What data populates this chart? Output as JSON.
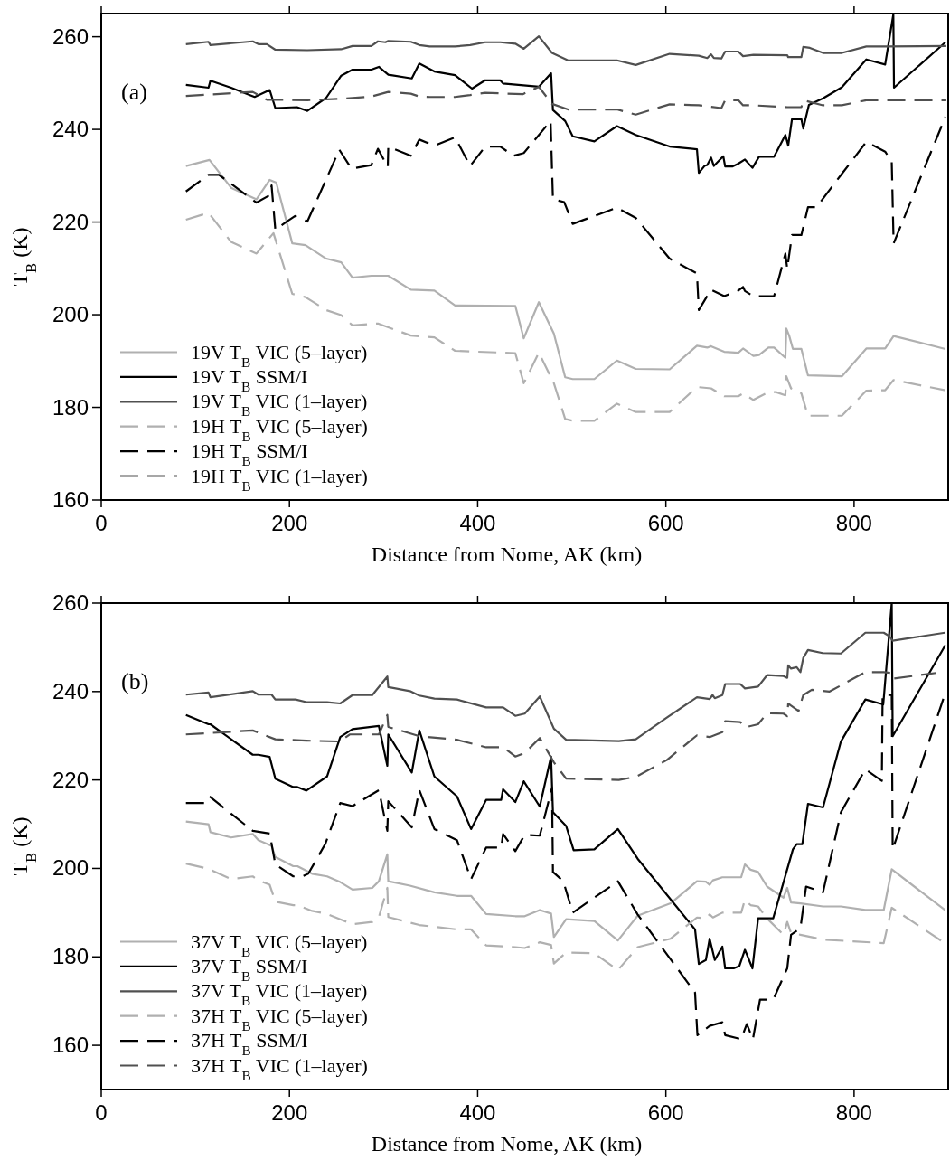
{
  "chart_data": [
    {
      "type": "line",
      "xlabel": "Distance from Nome, AK (km)",
      "ylabel": "T$_{B}$ (K)",
      "xlim": [
        0,
        900
      ],
      "ylim": [
        160,
        265
      ],
      "xticks": [
        0,
        200,
        400,
        600,
        800
      ],
      "yticks": [
        160,
        180,
        200,
        220,
        240,
        260
      ],
      "legend": "bottom left",
      "annotations": [
        "(a)"
      ],
      "series": [
        {
          "name": "19V T$_{B}$ VIC (5–layer)",
          "color": "#b0b0b0",
          "line_style": "solid",
          "x": [
            90,
            115,
            138,
            165,
            179,
            186,
            203,
            217,
            239,
            255,
            267,
            287,
            305,
            329,
            354,
            376,
            440,
            449,
            465,
            481,
            493,
            501,
            524,
            548,
            568,
            604,
            633,
            644,
            648,
            662,
            677,
            682,
            693,
            699,
            709,
            715,
            727,
            728,
            731,
            735,
            744,
            751,
            787,
            813,
            833,
            842,
            897
          ],
          "values": [
            232.1,
            233.4,
            227.4,
            224.9,
            229.1,
            228.5,
            215.4,
            215,
            212.1,
            211.3,
            208,
            208.4,
            208.4,
            205.4,
            205.2,
            202,
            201.9,
            194.9,
            202.7,
            195.9,
            186.5,
            186.1,
            186.1,
            190.1,
            188.3,
            188.2,
            193.3,
            192.9,
            193.2,
            192,
            191.8,
            192.7,
            191.1,
            191.3,
            192.9,
            192.9,
            190.7,
            197,
            195.5,
            192.6,
            192.6,
            186.9,
            186.7,
            192.7,
            192.7,
            195.4,
            192.6
          ]
        },
        {
          "name": "19V T$_{B}$ SSM/I",
          "color": "#000000",
          "line_style": "solid",
          "x": [
            90,
            114,
            116,
            138,
            163,
            179,
            185,
            208,
            219,
            239,
            255,
            267,
            287,
            295,
            305,
            330,
            338,
            354,
            376,
            394,
            408,
            424,
            427,
            465,
            478,
            480,
            493,
            501,
            524,
            548,
            568,
            604,
            633,
            635,
            641,
            644,
            648,
            651,
            661,
            663,
            671,
            677,
            684,
            692,
            699,
            715,
            727,
            730,
            734,
            744,
            746,
            752,
            767,
            787,
            813,
            833,
            841.7,
            842.4,
            897
          ],
          "values": [
            249.6,
            249,
            250.5,
            249,
            247,
            248.5,
            244.6,
            244.8,
            244,
            246.8,
            251.6,
            252.9,
            252.9,
            253.5,
            251.8,
            251,
            254.2,
            252.5,
            251.7,
            248.8,
            250.6,
            250.6,
            249.9,
            249.2,
            252.1,
            244.2,
            241.8,
            238.5,
            237.4,
            240.7,
            238.8,
            236.3,
            235.7,
            230.6,
            232.1,
            232.3,
            233.9,
            232.1,
            234.2,
            232,
            232,
            232.6,
            233.5,
            231.7,
            234.1,
            234.1,
            238.8,
            236.5,
            242.2,
            242.2,
            240.2,
            245.3,
            246.7,
            249.1,
            255.1,
            254,
            264.8,
            249,
            258.8
          ]
        },
        {
          "name": "19V T$_{B}$ VIC (1–layer)",
          "color": "#505050",
          "line_style": "solid",
          "x": [
            90,
            114,
            116,
            161,
            167,
            176,
            185,
            219,
            255,
            267,
            287,
            294,
            302,
            305,
            329,
            338,
            349,
            376,
            392,
            408,
            424,
            440,
            449,
            465,
            479,
            496,
            548,
            568,
            604,
            635,
            644,
            648,
            651,
            659,
            663,
            677,
            682,
            693,
            729,
            730,
            744,
            746,
            753,
            767,
            787,
            813,
            834,
            898
          ],
          "values": [
            258.4,
            258.9,
            258.2,
            259,
            258.4,
            258.4,
            257.2,
            257.1,
            257.3,
            258,
            258,
            259,
            258.8,
            259.1,
            258.9,
            258.2,
            257.9,
            257.9,
            258.2,
            258.8,
            258.8,
            258.5,
            257.4,
            260.1,
            256.5,
            254.9,
            254.9,
            253.9,
            256.3,
            255.9,
            255.4,
            256.2,
            255.4,
            255.3,
            256.8,
            256.8,
            255.8,
            256.1,
            256,
            255.6,
            255.6,
            257.8,
            257.6,
            256.5,
            256.5,
            257.9,
            257.9,
            258
          ]
        },
        {
          "name": "19H T$_{B}$ VIC (5–layer)",
          "color": "#b0b0b0",
          "line_style": "dashed",
          "x": [
            90,
            114,
            138,
            165,
            183,
            203,
            217,
            239,
            255,
            267,
            294,
            329,
            354,
            376,
            440,
            449,
            465,
            481,
            493,
            501,
            524,
            548,
            568,
            604,
            633,
            648,
            662,
            677,
            682,
            693,
            709,
            717,
            727,
            728,
            733,
            738,
            744,
            751,
            787,
            813,
            833,
            842,
            897
          ],
          "values": [
            220.5,
            222,
            215.7,
            213.2,
            217.6,
            204.5,
            203.8,
            201,
            199.9,
            197.7,
            198.1,
            195.5,
            195.1,
            192.2,
            191.7,
            185.2,
            191.8,
            185.2,
            177.5,
            177.1,
            177.1,
            180.8,
            179,
            179,
            184.4,
            184.1,
            182.4,
            182.4,
            183,
            181.6,
            183.3,
            183.3,
            182.6,
            186.7,
            184.1,
            183.7,
            183,
            178.2,
            178.2,
            183.6,
            183.7,
            185.9,
            183.7
          ]
        },
        {
          "name": "19H T$_{B}$ SSM/I",
          "color": "#000000",
          "line_style": "dashed",
          "x": [
            90,
            114,
            125,
            165,
            179,
            181,
            185,
            197,
            206,
            219,
            253,
            266,
            287,
            294,
            304.5,
            305,
            329,
            338,
            354,
            376,
            392,
            408,
            424,
            438,
            449,
            477.5,
            480,
            492,
            501,
            548,
            568,
            604,
            633,
            635,
            648,
            662,
            677,
            682,
            684,
            693,
            715,
            727,
            729,
            734,
            744,
            751,
            760,
            787,
            813,
            833,
            840,
            842,
            897
          ],
          "values": [
            226.6,
            230.2,
            230.2,
            224.2,
            225.8,
            227.9,
            218.3,
            220.1,
            221.3,
            220.1,
            235.6,
            231.5,
            232.3,
            235.8,
            231.9,
            236.3,
            234.3,
            237.8,
            236.5,
            238.3,
            232.1,
            236.3,
            236.3,
            234.3,
            234.9,
            241.8,
            224.9,
            224.3,
            219.6,
            223.1,
            220.9,
            212.1,
            208.9,
            201,
            205.4,
            204,
            205.2,
            206,
            205.1,
            204,
            204,
            213.2,
            209.9,
            217.2,
            217.2,
            223.2,
            223.2,
            230.4,
            237.3,
            235.2,
            233,
            215.4,
            242.7
          ]
        },
        {
          "name": "19H T$_{B}$ VIC (1–layer)",
          "color": "#505050",
          "line_style": "dashed",
          "x": [
            90,
            161,
            176,
            219,
            255,
            287,
            305,
            329,
            338,
            349,
            376,
            392,
            408,
            448,
            465,
            479,
            496,
            548,
            568,
            604,
            635,
            659,
            663,
            677,
            682,
            693,
            729,
            744,
            746,
            767,
            787,
            813,
            898
          ],
          "values": [
            247.2,
            248.1,
            246.4,
            246.3,
            246.6,
            247.1,
            248.1,
            247.7,
            247.1,
            247,
            247,
            247.4,
            247.9,
            247.6,
            249.2,
            245.5,
            244.3,
            244.3,
            243.2,
            245.4,
            245.2,
            244.6,
            246.3,
            246.3,
            245.2,
            245.2,
            244.8,
            244.8,
            246.3,
            245.2,
            245.2,
            246.3,
            246.3
          ]
        }
      ]
    },
    {
      "type": "line",
      "xlabel": "Distance from Nome, AK (km)",
      "ylabel": "T$_{B}$ (K)",
      "xlim": [
        0,
        900
      ],
      "ylim": [
        150,
        260
      ],
      "xticks": [
        0,
        200,
        400,
        600,
        800
      ],
      "yticks": [
        160,
        180,
        200,
        220,
        240,
        260
      ],
      "legend": "bottom left",
      "annotations": [
        "(b)"
      ],
      "series": [
        {
          "name": "37V T$_{B}$ VIC (5–layer)",
          "color": "#b0b0b0",
          "line_style": "solid",
          "x": [
            90,
            114,
            116,
            138,
            161,
            167,
            181,
            185,
            204,
            208.5,
            224,
            240,
            254,
            267,
            288,
            295,
            304,
            305,
            328,
            354,
            378,
            393,
            409,
            440,
            450,
            466,
            478,
            481,
            494,
            524,
            549,
            570,
            605,
            633,
            642.5,
            646.5,
            650,
            660,
            680,
            684,
            690,
            698,
            707.5,
            725,
            729,
            733,
            743,
            767,
            786,
            812,
            831.5,
            840,
            896.5
          ],
          "values": [
            210.6,
            210,
            208.2,
            207,
            207.8,
            206.4,
            205.1,
            202.6,
            200.5,
            200.5,
            198.8,
            198.2,
            196.9,
            195.2,
            195.6,
            197.1,
            203.2,
            197.1,
            196.1,
            194.6,
            193.8,
            193.8,
            189.7,
            189.2,
            189.2,
            190.6,
            189.8,
            184.5,
            188.5,
            188.1,
            183.7,
            189.3,
            192.1,
            197.1,
            197,
            196.3,
            197.3,
            198,
            198,
            200.9,
            199.7,
            199.2,
            195.9,
            193.4,
            195.6,
            192.3,
            192.1,
            191.4,
            191.4,
            190.6,
            190.6,
            199.8,
            190.6
          ]
        },
        {
          "name": "37V T$_{B}$ SSM/I",
          "color": "#000000",
          "line_style": "solid",
          "x": [
            90,
            114,
            116,
            161,
            167,
            179,
            185,
            204,
            208.5,
            218,
            240,
            254,
            267,
            295,
            304,
            305,
            330,
            338,
            354,
            378,
            393,
            409,
            425,
            427,
            440,
            449,
            466,
            478,
            480,
            494,
            502,
            524,
            549,
            570,
            631,
            635,
            642.5,
            646.5,
            652,
            660,
            663,
            672,
            678,
            684,
            692,
            698,
            714,
            735,
            739,
            745,
            751,
            767,
            786,
            812,
            831,
            840,
            841,
            897
          ],
          "values": [
            234.7,
            232.6,
            232.6,
            225.7,
            225.7,
            225.2,
            220.3,
            218.4,
            218.4,
            217.6,
            220.8,
            229.7,
            231.5,
            232.2,
            223.2,
            230.3,
            221.7,
            231.2,
            220.8,
            216.3,
            208.9,
            215.5,
            215.5,
            217.9,
            215,
            219.7,
            214,
            225.3,
            212.7,
            209.6,
            204.1,
            204.3,
            208.9,
            202.2,
            186.2,
            178.4,
            179.3,
            184.1,
            179.3,
            182.3,
            177.4,
            177.4,
            177.9,
            181.6,
            177.4,
            188.7,
            188.7,
            204.3,
            205.5,
            205.5,
            214.6,
            213.8,
            228.7,
            238.2,
            237.1,
            260,
            229.9,
            250.5
          ]
        },
        {
          "name": "37V T$_{B}$ VIC (1–layer)",
          "color": "#505050",
          "line_style": "solid",
          "x": [
            90,
            114,
            116,
            161,
            167,
            181,
            185,
            206.5,
            218,
            240,
            254,
            267,
            288,
            304,
            305,
            328,
            338,
            354,
            378,
            409,
            427,
            440,
            450,
            466,
            481,
            494,
            550,
            568,
            601,
            633,
            646.5,
            649.6,
            652,
            660,
            663,
            679,
            684,
            698,
            707.5,
            725,
            729,
            730,
            733,
            739,
            743,
            746,
            751,
            766.5,
            786,
            812,
            831.5,
            837,
            841,
            896.5
          ],
          "values": [
            239.3,
            239.8,
            238.7,
            240.1,
            239.3,
            239.3,
            238.2,
            238.2,
            237.6,
            237.6,
            237.3,
            239.2,
            239.2,
            243.4,
            241,
            240.1,
            239.1,
            238.4,
            238.2,
            236.4,
            236.4,
            234.5,
            235,
            238.9,
            231.6,
            229.1,
            228.8,
            229.2,
            234.1,
            238.7,
            238.3,
            239.2,
            238.5,
            239.2,
            241.7,
            241.7,
            240.7,
            241.1,
            243.7,
            243.5,
            243.1,
            245.9,
            245.2,
            245.5,
            244.4,
            247.6,
            249.4,
            248.7,
            248.6,
            253.3,
            253.3,
            252.6,
            251.5,
            253.3
          ]
        },
        {
          "name": "37H T$_{B}$ VIC (5–layer)",
          "color": "#b0b0b0",
          "line_style": "dashed",
          "x": [
            90,
            114,
            138,
            161,
            167,
            179,
            185,
            204,
            208.5,
            224,
            240,
            254,
            267,
            288,
            295,
            304,
            305,
            338,
            378,
            393,
            409,
            440,
            450,
            466,
            478,
            481,
            494,
            524,
            549,
            570,
            605,
            633,
            642.5,
            646.5,
            650,
            660,
            680,
            684,
            690,
            698,
            707.5,
            725,
            729,
            733,
            743,
            767,
            831.5,
            840,
            896.5
          ],
          "values": [
            201.1,
            199.9,
            197.6,
            198.2,
            197.3,
            196.3,
            192.5,
            191.7,
            191.7,
            190.4,
            189.7,
            188.5,
            187.4,
            187.9,
            189,
            195.6,
            189,
            187.2,
            186.2,
            186.2,
            182.6,
            182.2,
            182,
            183.3,
            182.7,
            178.5,
            181,
            180.8,
            177,
            182.2,
            184.1,
            188.9,
            188.7,
            189.6,
            188.9,
            190,
            190,
            192.9,
            191.7,
            191.4,
            188.7,
            185,
            187.9,
            185.4,
            185,
            183.9,
            183.1,
            191.1,
            183.1
          ]
        },
        {
          "name": "37H T$_{B}$ SSM/I",
          "color": "#000000",
          "line_style": "dashed",
          "x": [
            90,
            110,
            115,
            161,
            179,
            185,
            204,
            214,
            220,
            238,
            254,
            267,
            295,
            304,
            305,
            330,
            338,
            354,
            378,
            393,
            409,
            425,
            427,
            440,
            450,
            466,
            479,
            480,
            491,
            501,
            549,
            570,
            631,
            633.5,
            646.5,
            660,
            663,
            680,
            686,
            692.5,
            700,
            714,
            729,
            733,
            743,
            749,
            767,
            786,
            812,
            829.5,
            830.3,
            840,
            841,
            897
          ],
          "values": [
            214.8,
            214.8,
            216.3,
            208.5,
            207.9,
            200.9,
            198.2,
            198.2,
            198.8,
            205.5,
            214.8,
            214.1,
            217.7,
            208.5,
            215.2,
            209.3,
            217.7,
            208.9,
            206.4,
            197.6,
            204.7,
            204.7,
            207.8,
            203.9,
            207.6,
            207.4,
            218.2,
            199.2,
            197.1,
            190,
            197.1,
            189.6,
            171.9,
            162.3,
            164.4,
            165.2,
            162.3,
            161.4,
            164.8,
            161.4,
            170.3,
            170.3,
            177.4,
            185,
            186.5,
            195.9,
            194.6,
            212.7,
            222.4,
            219.8,
            239.2,
            239.2,
            204.3,
            239.7
          ]
        },
        {
          "name": "37H T$_{B}$ VIC (1–layer)",
          "color": "#505050",
          "line_style": "dashed",
          "x": [
            90,
            161,
            185,
            218,
            254,
            264,
            295,
            304,
            305,
            338,
            378,
            409,
            427,
            440,
            450,
            466,
            481,
            494,
            550,
            568,
            601,
            633,
            646.5,
            660,
            663,
            679,
            684,
            698,
            707.5,
            725,
            729,
            730,
            733,
            741,
            746,
            755,
            774,
            812,
            831.5,
            840,
            841,
            887
          ],
          "values": [
            230.3,
            231.2,
            229.2,
            228.9,
            228.7,
            230.3,
            230.3,
            234.7,
            232,
            229.9,
            229.1,
            227.4,
            227.4,
            225.3,
            226.1,
            229.5,
            224,
            220.3,
            220,
            220.7,
            224.5,
            230.1,
            229.7,
            230.8,
            233.3,
            233.1,
            231.9,
            232.6,
            235.1,
            235,
            234.4,
            237.3,
            236.8,
            235.6,
            239.2,
            240.4,
            240,
            244.4,
            244.4,
            244.2,
            242.9,
            244.2
          ]
        }
      ]
    }
  ]
}
